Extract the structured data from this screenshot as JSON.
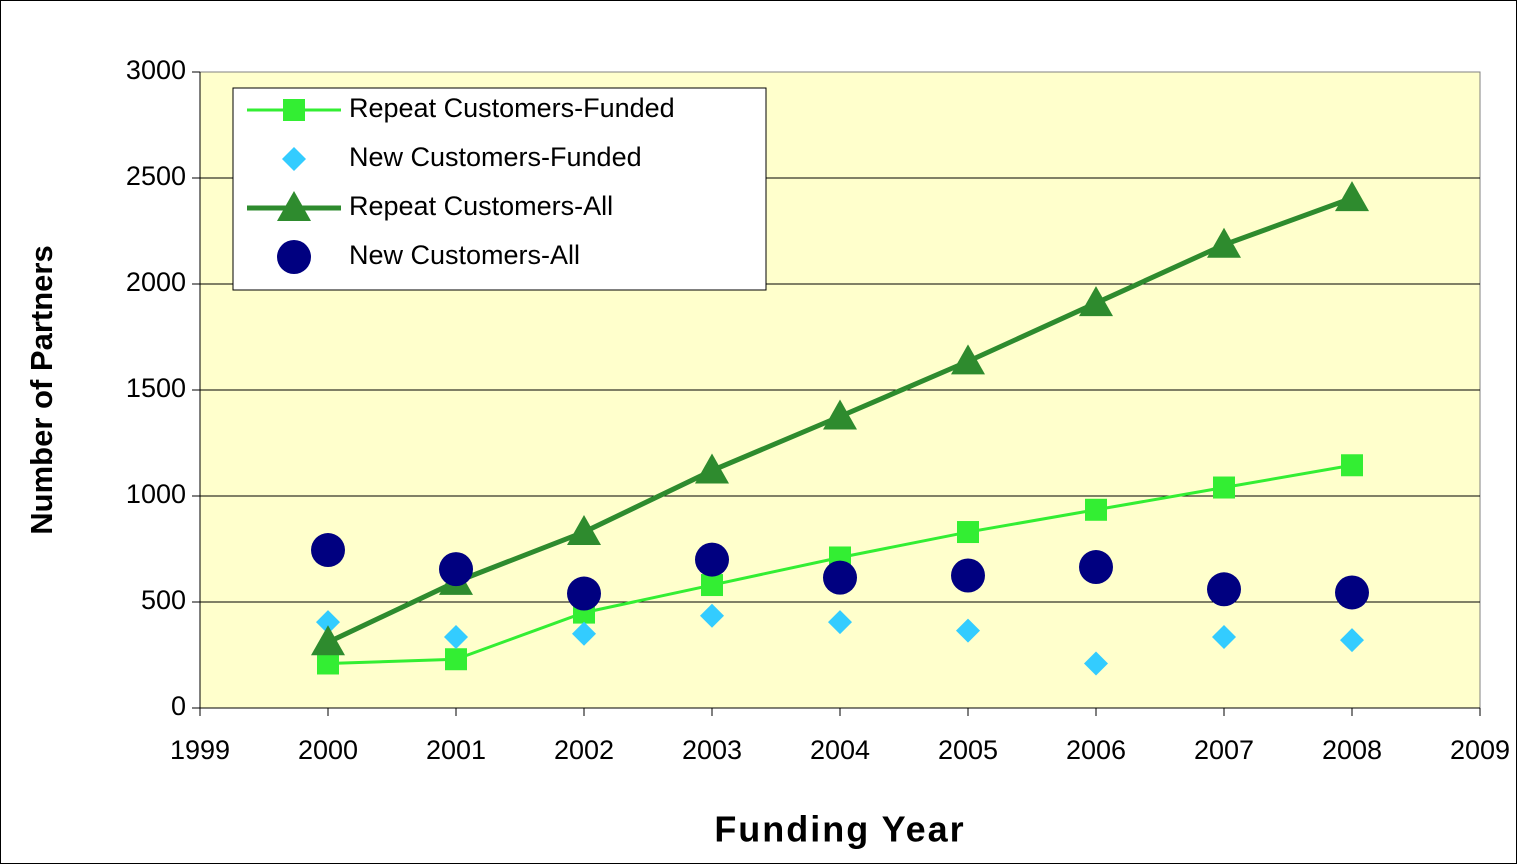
{
  "chart_data": {
    "type": "scatter",
    "x_label": "Funding Year",
    "y_label": "Number of Partners",
    "x": [
      2000,
      2001,
      2002,
      2003,
      2004,
      2005,
      2006,
      2007,
      2008
    ],
    "xlim": [
      1999,
      2009
    ],
    "xticks": [
      1999,
      2000,
      2001,
      2002,
      2003,
      2004,
      2005,
      2006,
      2007,
      2008,
      2009
    ],
    "ylim": [
      0,
      3000
    ],
    "yticks": [
      0,
      500,
      1000,
      1500,
      2000,
      2500,
      3000
    ],
    "grid": true,
    "legend": "upper left",
    "series": [
      {
        "name": "Repeat Customers-Funded",
        "color": "#33ee33",
        "marker": "square",
        "line": true,
        "values": [
          210,
          230,
          450,
          580,
          710,
          830,
          935,
          1040,
          1145
        ]
      },
      {
        "name": "New  Customers-Funded",
        "color": "#33ccff",
        "marker": "diamond",
        "line": false,
        "values": [
          405,
          335,
          350,
          435,
          405,
          365,
          210,
          335,
          320
        ]
      },
      {
        "name": "Repeat Customers-All",
        "color": "#2e8b2e",
        "marker": "triangle",
        "line": true,
        "values": [
          310,
          595,
          830,
          1120,
          1375,
          1635,
          1910,
          2185,
          2405
        ]
      },
      {
        "name": "New  Customers-All",
        "color": "#000080",
        "marker": "circle",
        "line": false,
        "values": [
          745,
          655,
          540,
          700,
          615,
          625,
          665,
          560,
          545
        ]
      }
    ]
  }
}
